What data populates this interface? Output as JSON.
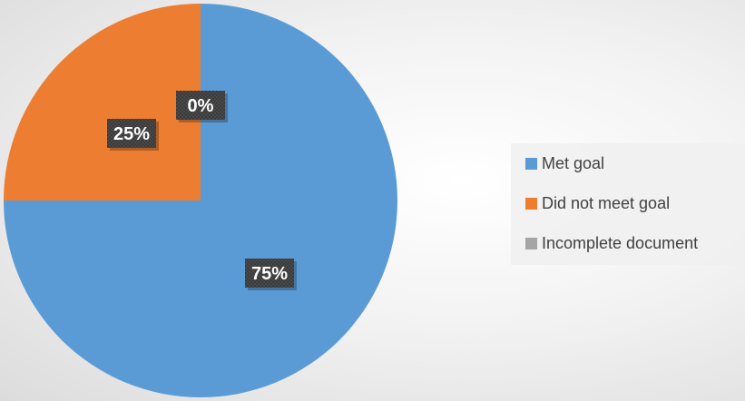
{
  "chart_data": {
    "type": "pie",
    "title": "",
    "categories": [
      "Met goal",
      "Did not meet goal",
      "Incomplete document"
    ],
    "values": [
      75,
      25,
      0
    ],
    "data_labels": [
      "75%",
      "25%",
      "0%"
    ],
    "colors": [
      "#5b9bd5",
      "#ed7d31",
      "#a5a5a5"
    ],
    "start_angle": "12 o'clock",
    "direction": "clockwise",
    "legend_position": "right"
  }
}
